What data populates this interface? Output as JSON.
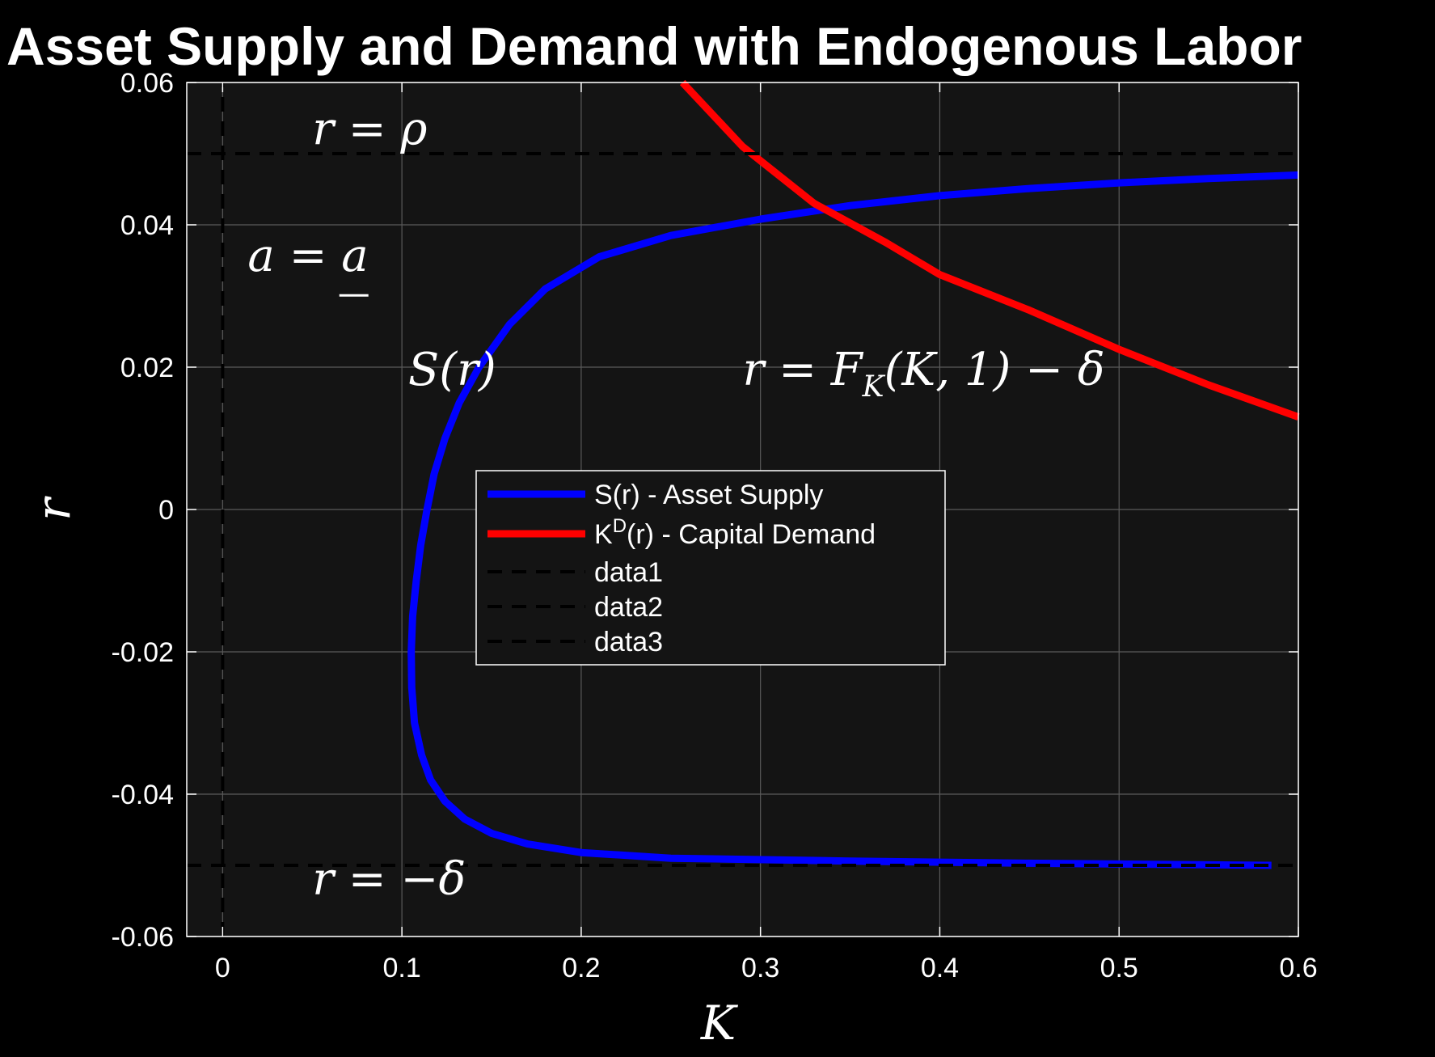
{
  "chart_data": {
    "type": "line",
    "title": "Asset Supply and Demand with Endogenous Labor",
    "xlabel": "K",
    "ylabel": "r",
    "xlim": [
      -0.02,
      0.6
    ],
    "ylim": [
      -0.06,
      0.06
    ],
    "grid": true,
    "background": "#141414",
    "x_ticks": [
      "0",
      "0.1",
      "0.2",
      "0.3",
      "0.4",
      "0.5",
      "0.6"
    ],
    "y_ticks": [
      "-0.06",
      "-0.04",
      "-0.02",
      "0",
      "0.02",
      "0.04",
      "0.06"
    ],
    "legend": {
      "placement": "center",
      "entries": [
        {
          "label": "S(r) - Asset Supply",
          "color": "#0000ff",
          "style": "solid"
        },
        {
          "label_main": "K",
          "label_sup": "D",
          "label_rest": "(r)  -  Capital  Demand",
          "color": "#ff0000",
          "style": "solid"
        },
        {
          "label": "data1",
          "color": "#000000",
          "style": "dashed"
        },
        {
          "label": "data2",
          "color": "#000000",
          "style": "dashed"
        },
        {
          "label": "data3",
          "color": "#000000",
          "style": "dashed"
        }
      ]
    },
    "series": [
      {
        "name": "S(r) - Asset Supply",
        "color": "#0000ff",
        "points": [
          [
            0.585,
            -0.05
          ],
          [
            0.45,
            -0.0497
          ],
          [
            0.35,
            -0.0494
          ],
          [
            0.25,
            -0.049
          ],
          [
            0.2,
            -0.0482
          ],
          [
            0.17,
            -0.047
          ],
          [
            0.15,
            -0.0455
          ],
          [
            0.135,
            -0.0435
          ],
          [
            0.124,
            -0.041
          ],
          [
            0.116,
            -0.038
          ],
          [
            0.111,
            -0.0345
          ],
          [
            0.107,
            -0.03
          ],
          [
            0.1055,
            -0.025
          ],
          [
            0.1052,
            -0.02
          ],
          [
            0.106,
            -0.015
          ],
          [
            0.108,
            -0.01
          ],
          [
            0.1105,
            -0.005
          ],
          [
            0.114,
            0.0
          ],
          [
            0.118,
            0.005
          ],
          [
            0.124,
            0.01
          ],
          [
            0.132,
            0.015
          ],
          [
            0.143,
            0.02
          ],
          [
            0.16,
            0.026
          ],
          [
            0.18,
            0.031
          ],
          [
            0.21,
            0.0355
          ],
          [
            0.25,
            0.0385
          ],
          [
            0.3,
            0.0408
          ],
          [
            0.35,
            0.0427
          ],
          [
            0.4,
            0.0441
          ],
          [
            0.45,
            0.0451
          ],
          [
            0.5,
            0.0459
          ],
          [
            0.55,
            0.0465
          ],
          [
            0.6,
            0.047
          ]
        ]
      },
      {
        "name": "K^D(r) - Capital Demand",
        "color": "#ff0000",
        "points": [
          [
            0.2565,
            0.06
          ],
          [
            0.29,
            0.051
          ],
          [
            0.33,
            0.043
          ],
          [
            0.37,
            0.0375
          ],
          [
            0.4,
            0.033
          ],
          [
            0.45,
            0.028
          ],
          [
            0.5,
            0.0225
          ],
          [
            0.55,
            0.0175
          ],
          [
            0.6,
            0.013
          ]
        ]
      },
      {
        "name": "data1",
        "color": "#000000",
        "style": "dashed",
        "points": [
          [
            -0.02,
            0.05
          ],
          [
            0.6,
            0.05
          ]
        ]
      },
      {
        "name": "data2",
        "color": "#000000",
        "style": "dashed",
        "points": [
          [
            -0.02,
            -0.05
          ],
          [
            0.6,
            -0.05
          ]
        ]
      },
      {
        "name": "data3",
        "color": "#000000",
        "style": "dashed",
        "points": [
          [
            0.0,
            -0.06
          ],
          [
            0.0,
            0.06
          ]
        ]
      }
    ],
    "annotations": [
      {
        "text": "r = ρ",
        "x": 0.05,
        "y": 0.0513
      },
      {
        "text": "r = −δ",
        "x": 0.05,
        "y": -0.0541
      },
      {
        "text": "S(r)",
        "x": 0.1035,
        "y": 0.0175
      },
      {
        "text": "r = F",
        "sub": "K",
        "rest": "(K, 1) − δ",
        "x": 0.29,
        "y": 0.0175
      },
      {
        "text": "a = a",
        "underline_last": true,
        "x": 0.014,
        "y": 0.0335
      }
    ]
  }
}
